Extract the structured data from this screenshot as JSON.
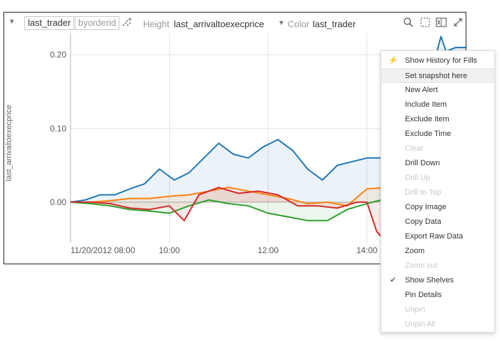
{
  "toolbar": {
    "shelf_1": "last_trader",
    "shelf_2": "byorderid",
    "height_label": "Height",
    "height_value": "last_arrivaltoexecprice",
    "color_label": "Color",
    "color_value": "last_trader"
  },
  "icons": {
    "collapse": "caret-down-icon",
    "scatter": "scatter-add-icon",
    "search": "search-icon",
    "select": "marquee-select-icon",
    "export": "excel-export-icon",
    "expand": "expand-icon",
    "color_dropdown": "caret-down-icon"
  },
  "chart_data": {
    "type": "area",
    "ylabel": "last_arrivaltoexecprice",
    "y_ticks": [
      "0.00",
      "0.10",
      "0.20"
    ],
    "x_ticks": [
      "11/20/2012 08:00",
      "10:00",
      "12:00",
      "14:00"
    ],
    "ylim": [
      -0.055,
      0.23
    ],
    "series": [
      {
        "color": "#1f77b4",
        "x": [
          8.0,
          8.3,
          8.6,
          8.9,
          9.2,
          9.5,
          9.8,
          10.1,
          10.4,
          10.7,
          11.0,
          11.3,
          11.6,
          11.9,
          12.2,
          12.5,
          12.8,
          13.1,
          13.4,
          13.7,
          14.0,
          14.3,
          14.6,
          14.9,
          15.2,
          15.4,
          15.5,
          15.6,
          15.8,
          16.0
        ],
        "y": [
          0.0,
          0.003,
          0.01,
          0.01,
          0.018,
          0.025,
          0.045,
          0.03,
          0.04,
          0.06,
          0.08,
          0.065,
          0.06,
          0.075,
          0.085,
          0.07,
          0.045,
          0.03,
          0.05,
          0.055,
          0.06,
          0.06,
          0.045,
          0.065,
          0.11,
          0.2,
          0.225,
          0.205,
          0.21,
          0.21
        ]
      },
      {
        "color": "#ff7f0e",
        "x": [
          8.0,
          8.4,
          8.8,
          9.2,
          9.6,
          10.0,
          10.4,
          10.8,
          11.2,
          11.6,
          12.0,
          12.4,
          12.8,
          13.2,
          13.6,
          14.0,
          14.4,
          14.8,
          15.2,
          15.5,
          16.0
        ],
        "y": [
          0.0,
          0.0,
          0.002,
          0.005,
          0.005,
          0.008,
          0.01,
          0.015,
          0.02,
          0.015,
          0.01,
          0.005,
          -0.002,
          0.0,
          -0.005,
          0.018,
          0.02,
          0.015,
          0.01,
          0.045,
          0.045
        ]
      },
      {
        "color": "#2ca02c",
        "x": [
          8.0,
          8.4,
          8.8,
          9.2,
          9.6,
          10.0,
          10.4,
          10.8,
          11.2,
          11.6,
          12.0,
          12.4,
          12.8,
          13.2,
          13.6,
          14.0,
          14.4,
          14.8,
          15.2,
          15.5,
          16.0
        ],
        "y": [
          0.0,
          -0.002,
          -0.005,
          -0.01,
          -0.012,
          -0.015,
          -0.005,
          0.003,
          -0.002,
          -0.005,
          -0.015,
          -0.02,
          -0.025,
          -0.025,
          -0.01,
          -0.002,
          0.005,
          0.0,
          0.005,
          0.035,
          0.035
        ]
      },
      {
        "color": "#d62728",
        "x": [
          8.0,
          8.4,
          8.8,
          9.2,
          9.6,
          10.0,
          10.3,
          10.6,
          11.0,
          11.4,
          11.8,
          12.2,
          12.6,
          13.0,
          13.4,
          13.8,
          14.0,
          14.2,
          14.4,
          14.8,
          15.2,
          15.5,
          16.0
        ],
        "y": [
          0.0,
          0.0,
          -0.002,
          -0.008,
          -0.01,
          -0.005,
          -0.025,
          0.01,
          0.02,
          0.012,
          0.015,
          0.01,
          -0.005,
          -0.005,
          -0.008,
          0.0,
          0.0,
          -0.04,
          -0.055,
          -0.035,
          -0.005,
          0.065,
          0.065
        ]
      }
    ]
  },
  "context_menu": {
    "items": [
      {
        "label": "Show History for Fills",
        "enabled": true,
        "icon": "lightning-icon"
      },
      {
        "label": "Set snapshot here",
        "enabled": true,
        "hover": true
      },
      {
        "label": "New Alert",
        "enabled": true
      },
      {
        "label": "Include Item",
        "enabled": true
      },
      {
        "label": "Exclude Item",
        "enabled": true
      },
      {
        "label": "Exclude Time",
        "enabled": true
      },
      {
        "label": "Clear",
        "enabled": false
      },
      {
        "label": "Drill Down",
        "enabled": true
      },
      {
        "label": "Drill Up",
        "enabled": false
      },
      {
        "label": "Drill to Top",
        "enabled": false
      },
      {
        "label": "Copy Image",
        "enabled": true
      },
      {
        "label": "Copy Data",
        "enabled": true
      },
      {
        "label": "Export Raw Data",
        "enabled": true
      },
      {
        "label": "Zoom",
        "enabled": true
      },
      {
        "label": "Zoom out",
        "enabled": false
      },
      {
        "label": "Show Shelves",
        "enabled": true,
        "checked": true
      },
      {
        "label": "Pin Details",
        "enabled": true
      },
      {
        "label": "Unpin",
        "enabled": false
      },
      {
        "label": "Unpin All",
        "enabled": false
      }
    ]
  }
}
